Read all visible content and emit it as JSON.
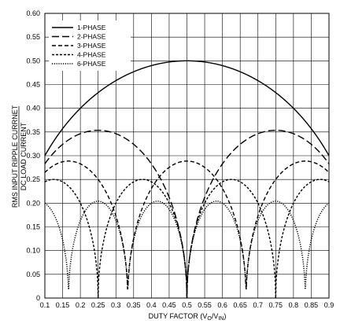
{
  "chart_data": {
    "type": "line",
    "xlabel": "DUTY FACTOR (V",
    "xlabel_sub1": "O",
    "xlabel_mid": "/V",
    "xlabel_sub2": "IN",
    "xlabel_end": ")",
    "ylabel_top": "RMS INPUT RIPPLE CURRNET",
    "ylabel_bottom": "DC LOAD CURRENT",
    "xlim": [
      0.1,
      0.9
    ],
    "ylim": [
      0,
      0.6
    ],
    "x_ticks": [
      "0.1",
      "0.15",
      "0.2",
      "0.25",
      "0.3",
      "0.35",
      "0.4",
      "0.45",
      "0.5",
      "0.55",
      "0.6",
      "0.65",
      "0.7",
      "0.75",
      "0.8",
      "0.85",
      "0.9"
    ],
    "y_ticks": [
      "0",
      "0.05",
      "0.10",
      "0.15",
      "0.20",
      "0.25",
      "0.30",
      "0.35",
      "0.40",
      "0.45",
      "0.50",
      "0.55",
      "0.60"
    ],
    "grid": true,
    "legend_position": "top-left",
    "series": [
      {
        "name": "1-PHASE",
        "phases": 1,
        "dash": "solid",
        "x": [
          0.1,
          0.15,
          0.2,
          0.25,
          0.3,
          0.35,
          0.4,
          0.45,
          0.5,
          0.55,
          0.6,
          0.65,
          0.7,
          0.75,
          0.8,
          0.85,
          0.9
        ],
        "y": [
          0.3,
          0.357,
          0.4,
          0.433,
          0.458,
          0.477,
          0.49,
          0.497,
          0.5,
          0.497,
          0.49,
          0.477,
          0.458,
          0.433,
          0.4,
          0.357,
          0.3
        ]
      },
      {
        "name": "2-PHASE",
        "phases": 2,
        "dash": "dash-long",
        "x": [
          0.1,
          0.15,
          0.2,
          0.25,
          0.3,
          0.35,
          0.4,
          0.45,
          0.5,
          0.55,
          0.6,
          0.65,
          0.7,
          0.75,
          0.8,
          0.85,
          0.9
        ],
        "y": [
          0.2,
          0.229,
          0.245,
          0.25,
          0.245,
          0.229,
          0.2,
          0.15,
          0.0,
          0.15,
          0.2,
          0.229,
          0.245,
          0.25,
          0.245,
          0.229,
          0.2
        ]
      },
      {
        "name": "3-PHASE",
        "phases": 3,
        "dash": "dash-medium",
        "x": [
          0.1,
          0.15,
          0.2,
          0.25,
          0.3,
          0.333,
          0.35,
          0.4,
          0.45,
          0.5,
          0.55,
          0.6,
          0.65,
          0.667,
          0.7,
          0.75,
          0.8,
          0.85,
          0.9
        ],
        "y": [
          0.153,
          0.166,
          0.164,
          0.144,
          0.096,
          0.0,
          0.066,
          0.131,
          0.16,
          0.167,
          0.16,
          0.131,
          0.066,
          0.0,
          0.096,
          0.144,
          0.164,
          0.166,
          0.153
        ]
      },
      {
        "name": "4-PHASE",
        "phases": 4,
        "dash": "dash-short",
        "x": [
          0.1,
          0.15,
          0.2,
          0.25,
          0.3,
          0.35,
          0.4,
          0.45,
          0.5,
          0.55,
          0.6,
          0.65,
          0.7,
          0.75,
          0.8,
          0.85,
          0.9
        ],
        "y": [
          0.1,
          0.119,
          0.122,
          0.0,
          0.122,
          0.119,
          0.1,
          0.072,
          0.0,
          0.072,
          0.1,
          0.119,
          0.122,
          0.0,
          0.122,
          0.119,
          0.1
        ]
      },
      {
        "name": "6-PHASE",
        "phases": 6,
        "dash": "dotted",
        "x": [
          0.1,
          0.167,
          0.2,
          0.25,
          0.3,
          0.333,
          0.4,
          0.45,
          0.5,
          0.55,
          0.6,
          0.667,
          0.7,
          0.75,
          0.8,
          0.833,
          0.9
        ],
        "y": [
          0.08,
          0.0,
          0.07,
          0.083,
          0.07,
          0.0,
          0.075,
          0.07,
          0.0,
          0.07,
          0.075,
          0.0,
          0.07,
          0.083,
          0.07,
          0.0,
          0.08
        ]
      }
    ]
  }
}
